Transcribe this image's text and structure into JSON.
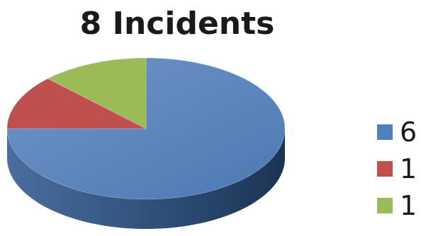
{
  "chart_data": {
    "type": "pie",
    "title": "8 Incidents",
    "slices": [
      {
        "label": "6",
        "value": 6,
        "color": "#4F81BD"
      },
      {
        "label": "1",
        "value": 1,
        "color": "#C0504D"
      },
      {
        "label": "1",
        "value": 1,
        "color": "#9BBB59"
      }
    ],
    "three_d": true,
    "legend_position": "right"
  }
}
